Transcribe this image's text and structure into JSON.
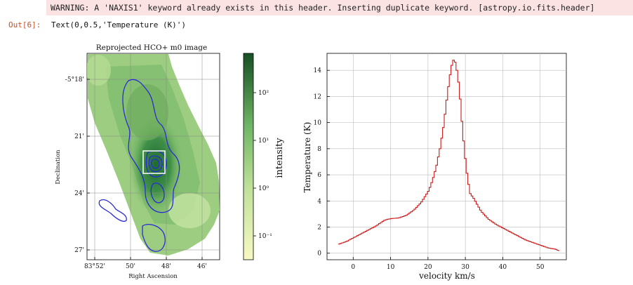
{
  "cell": {
    "warning": "WARNING: A 'NAXIS1' keyword already exists in this header.  Inserting duplicate keyword. [astropy.io.fits.header]",
    "out_prompt": "Out[6]:",
    "out_text": "Text(0,0.5,'Temperature (K)')"
  },
  "chart_data": [
    {
      "type": "heatmap",
      "title": "Reprojected HCO+ m0 image",
      "xlabel": "Right Ascension",
      "ylabel": "Declination",
      "x_ticks": [
        "83°52'",
        "50'",
        "48'",
        "46'"
      ],
      "y_ticks": [
        "-5°18'",
        "21'",
        "24'",
        "27'"
      ],
      "colorbar": {
        "label": "intensity",
        "scale": "log",
        "ticks": [
          "10²",
          "10¹",
          "10⁰",
          "10⁻¹"
        ],
        "colors": [
          "#1b5e2b",
          "#52a85a",
          "#a9d38a",
          "#f7f9c2"
        ]
      },
      "contour_color": "#2b2bd4",
      "box_color": "#ffffff"
    },
    {
      "type": "line",
      "title": "",
      "xlabel": "velocity km/s",
      "ylabel": "Temperature (K)",
      "xlim": [
        -7,
        57
      ],
      "ylim": [
        -0.5,
        15.3
      ],
      "x_ticks": [
        0,
        10,
        20,
        30,
        40,
        50
      ],
      "y_ticks": [
        0,
        2,
        4,
        6,
        8,
        10,
        12,
        14
      ],
      "grid": true,
      "color": "#cc1a1a",
      "drawstyle": "steps",
      "series": [
        {
          "x": [
            -4,
            -2,
            0,
            2,
            4,
            6,
            8,
            9,
            10,
            12,
            14,
            16,
            18,
            20,
            21,
            22,
            23,
            24,
            25,
            25.5,
            26,
            26.5,
            27,
            27.5,
            28,
            28.5,
            29,
            30,
            31,
            32,
            34,
            36,
            38,
            40,
            42,
            44,
            46,
            48,
            50,
            52,
            54,
            55
          ],
          "y": [
            0.7,
            0.9,
            1.2,
            1.5,
            1.8,
            2.1,
            2.5,
            2.6,
            2.65,
            2.7,
            2.9,
            3.3,
            3.9,
            4.8,
            5.6,
            6.6,
            8.0,
            9.8,
            12.2,
            13.3,
            14.2,
            14.8,
            14.7,
            14.0,
            13.0,
            11.5,
            9.5,
            6.5,
            4.6,
            4.2,
            3.2,
            2.6,
            2.2,
            1.9,
            1.6,
            1.3,
            1.0,
            0.8,
            0.6,
            0.4,
            0.3,
            0.15
          ]
        }
      ]
    }
  ]
}
